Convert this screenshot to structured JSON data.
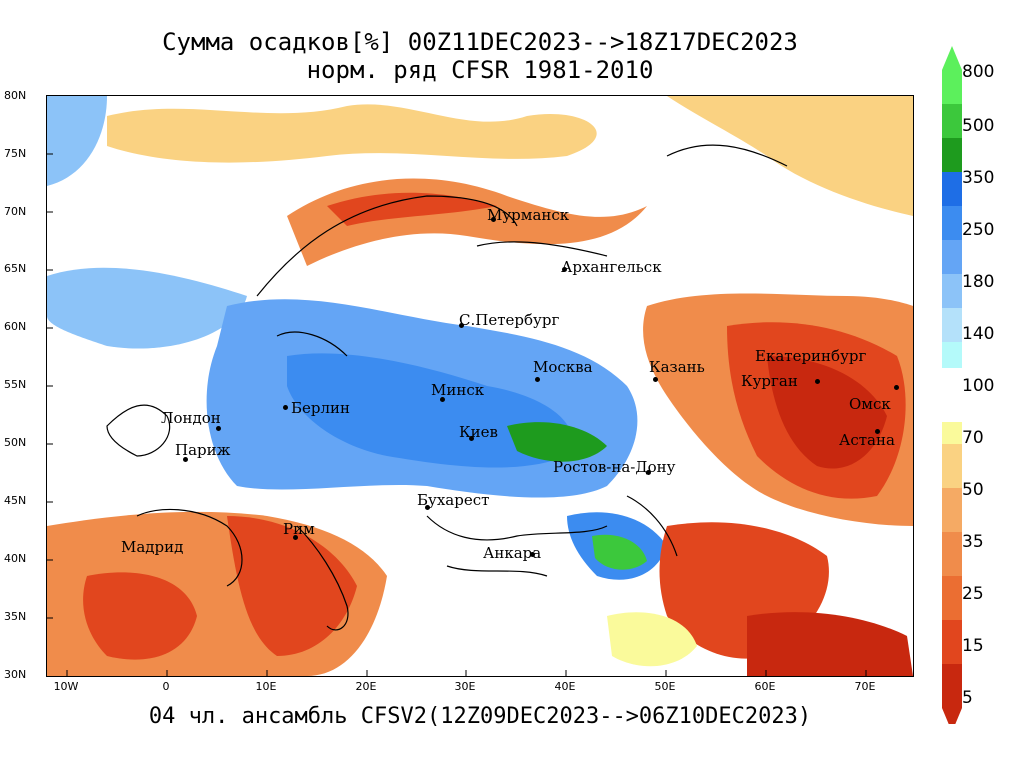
{
  "title_line1": "Сумма осадков[%] 00Z11DEC2023-->18Z17DEC2023",
  "title_line2": "норм. ряд CFSR 1981-2010",
  "footer": "04 чл. ансамбль CFSV2(12Z09DEC2023-->06Z10DEC2023)",
  "lat_labels": [
    "80N",
    "75N",
    "70N",
    "65N",
    "60N",
    "55N",
    "50N",
    "45N",
    "40N",
    "35N",
    "30N"
  ],
  "lon_labels": [
    "10W",
    "0",
    "10E",
    "20E",
    "30E",
    "40E",
    "50E",
    "60E",
    "70E"
  ],
  "colorbar": {
    "upper_labels": [
      "800",
      "500",
      "350",
      "250",
      "180",
      "140"
    ],
    "middle_label": "100",
    "lower_labels": [
      "70",
      "50",
      "35",
      "25",
      "15",
      "5"
    ],
    "upper_colors": [
      "#5cf05c",
      "#3cc83c",
      "#1e9b1e",
      "#1e6ee6",
      "#3c8cf0",
      "#64a5f5",
      "#8cc3f8",
      "#b4e1fa",
      "#b4fafa"
    ],
    "lower_colors": [
      "#fafa9b",
      "#fad282",
      "#f5aa64",
      "#f08c4b",
      "#eb6e32",
      "#e1461e",
      "#c8280f"
    ]
  },
  "cities": {
    "murmansk": "Мурманск",
    "arkhangelsk": "Архангельск",
    "spb": "С.Петербург",
    "moscow": "Москва",
    "kazan": "Казань",
    "yekaterinburg": "Екатеринбург",
    "kurgan": "Курган",
    "omsk": "Омск",
    "astana": "Астана",
    "minsk": "Минск",
    "berlin": "Берлин",
    "london": "Лондон",
    "paris": "Париж",
    "kiev": "Киев",
    "rostov": "Ростов-на-Дону",
    "bucharest": "Бухарест",
    "rome": "Рим",
    "madrid": "Мадрид",
    "ankara": "Анкара"
  }
}
